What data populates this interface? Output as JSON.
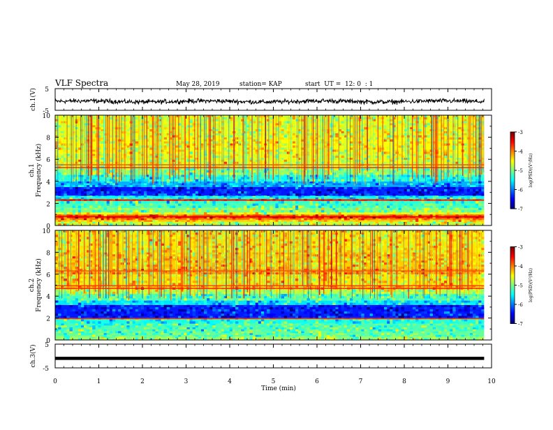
{
  "header": {
    "title": "VLF Spectra",
    "date": "May 28, 2019",
    "station": "station= KAP",
    "start": "start  UT =  12: 0  : 1"
  },
  "chart_data": [
    {
      "type": "line",
      "name": "ch1-waveform",
      "ylabel": "ch.1(V)",
      "ylim": [
        -5,
        5
      ],
      "yticks": [
        "5",
        "-5"
      ],
      "xlim": [
        0,
        10
      ],
      "x_end": 9.83,
      "style": "dense noisy trace around -1 V, amplitude about ±1.5 V"
    },
    {
      "type": "heatmap",
      "name": "ch1-spectrogram",
      "ylabel": "ch.1\nFrequency (kHz)",
      "ylim": [
        0,
        10
      ],
      "yticks": [
        0,
        2,
        4,
        6,
        8,
        10
      ],
      "xlim": [
        0,
        10
      ],
      "x_end": 9.83,
      "colorbar": {
        "label": "log(PSD)(V²/Hz)",
        "range": [
          -7,
          -3
        ],
        "ticks": [
          "-3",
          "-4",
          "-5",
          "-6",
          "-7"
        ]
      },
      "bands": [
        {
          "from": 0.0,
          "to": 0.35,
          "level": -4.7
        },
        {
          "from": 0.35,
          "to": 0.5,
          "level": -4.3
        },
        {
          "from": 0.5,
          "to": 0.65,
          "level": -4.0
        },
        {
          "from": 0.65,
          "to": 0.85,
          "level": -3.6
        },
        {
          "from": 0.85,
          "to": 1.0,
          "level": -3.9
        },
        {
          "from": 1.0,
          "to": 1.2,
          "level": -4.6
        },
        {
          "from": 1.2,
          "to": 1.6,
          "level": -5.0
        },
        {
          "from": 1.6,
          "to": 2.0,
          "level": -5.2
        },
        {
          "from": 2.0,
          "to": 2.25,
          "level": -5.3
        },
        {
          "from": 2.25,
          "to": 2.4,
          "level": -3.8
        },
        {
          "from": 2.4,
          "to": 2.7,
          "level": -5.5
        },
        {
          "from": 2.7,
          "to": 3.5,
          "level": -6.4
        },
        {
          "from": 3.5,
          "to": 4.0,
          "level": -5.8
        },
        {
          "from": 4.0,
          "to": 4.6,
          "level": -5.4
        },
        {
          "from": 4.6,
          "to": 5.2,
          "level": -5.0
        },
        {
          "from": 5.2,
          "to": 5.6,
          "level": -4.7
        },
        {
          "from": 5.6,
          "to": 6.5,
          "level": -4.6
        },
        {
          "from": 6.5,
          "to": 8.0,
          "level": -4.5
        },
        {
          "from": 8.0,
          "to": 10.0,
          "level": -4.6
        }
      ],
      "lines": [
        {
          "f": 0.8,
          "level": -3.3
        },
        {
          "f": 2.3,
          "level": -3.4
        },
        {
          "f": 5.25,
          "level": -3.6
        },
        {
          "f": 5.5,
          "level": -3.8
        }
      ]
    },
    {
      "type": "heatmap",
      "name": "ch2-spectrogram",
      "ylabel": "ch.2\nFrequency (kHz)",
      "ylim": [
        0,
        10
      ],
      "yticks": [
        0,
        2,
        4,
        6,
        8,
        10
      ],
      "xlim": [
        0,
        10
      ],
      "x_end": 9.83,
      "colorbar": {
        "label": "log(PSD)(V²/Hz)",
        "range": [
          -7,
          -3
        ],
        "ticks": [
          "-3",
          "-4",
          "-5",
          "-6",
          "-7"
        ]
      },
      "bands": [
        {
          "from": 0.0,
          "to": 0.3,
          "level": -4.9
        },
        {
          "from": 0.3,
          "to": 0.8,
          "level": -5.1
        },
        {
          "from": 0.8,
          "to": 1.5,
          "level": -5.2
        },
        {
          "from": 1.5,
          "to": 1.9,
          "level": -5.4
        },
        {
          "from": 1.9,
          "to": 2.0,
          "level": -4.2
        },
        {
          "from": 2.0,
          "to": 3.2,
          "level": -6.4
        },
        {
          "from": 3.2,
          "to": 3.6,
          "level": -5.6
        },
        {
          "from": 3.6,
          "to": 4.2,
          "level": -5.2
        },
        {
          "from": 4.2,
          "to": 4.6,
          "level": -4.8
        },
        {
          "from": 4.6,
          "to": 5.0,
          "level": -4.2
        },
        {
          "from": 5.0,
          "to": 6.0,
          "level": -4.4
        },
        {
          "from": 6.0,
          "to": 6.5,
          "level": -4.1
        },
        {
          "from": 6.5,
          "to": 8.0,
          "level": -4.3
        },
        {
          "from": 8.0,
          "to": 10.0,
          "level": -4.4
        }
      ],
      "lines": [
        {
          "f": 1.95,
          "level": -3.6
        },
        {
          "f": 4.7,
          "level": -3.6
        },
        {
          "f": 4.95,
          "level": -3.7
        },
        {
          "f": 6.3,
          "level": -3.8
        }
      ]
    },
    {
      "type": "line",
      "name": "ch3-waveform",
      "ylabel": "ch.3(V)",
      "ylim": [
        -5,
        5
      ],
      "yticks": [
        "5",
        "-5"
      ],
      "xlim": [
        0,
        10
      ],
      "x_end": 9.83,
      "value": -1,
      "xlabel": "Time (min)",
      "xticks": [
        "0",
        "1",
        "2",
        "3",
        "4",
        "5",
        "6",
        "7",
        "8",
        "9",
        "10"
      ]
    }
  ]
}
